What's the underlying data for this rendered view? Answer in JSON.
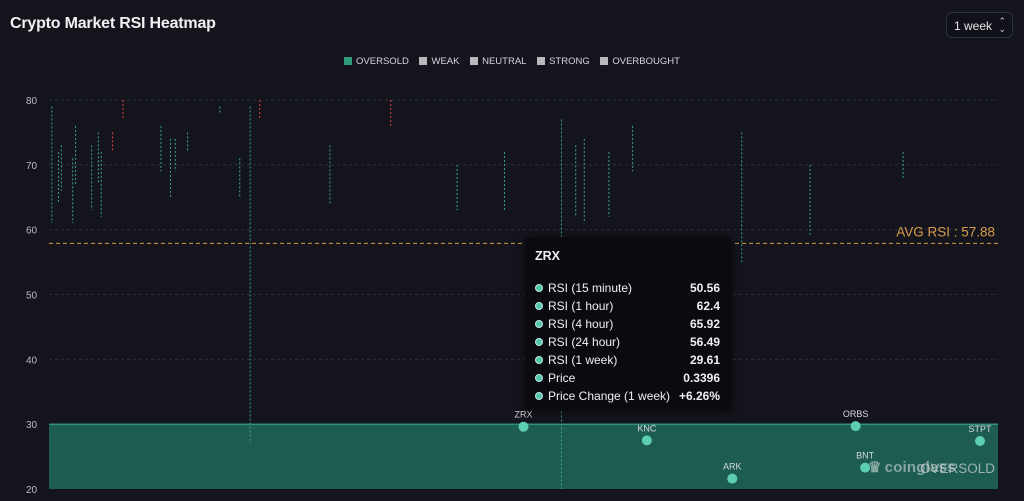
{
  "header": {
    "title": "Crypto Market RSI Heatmap"
  },
  "period_select": {
    "value": "1 week",
    "icon": "chevron-up-down-icon"
  },
  "legend": [
    {
      "label": "OVERSOLD",
      "color": "#2f9a7c"
    },
    {
      "label": "WEAK",
      "color": "#b8b8bd"
    },
    {
      "label": "NEUTRAL",
      "color": "#b8b8bd"
    },
    {
      "label": "STRONG",
      "color": "#b8b8bd"
    },
    {
      "label": "OVERBOUGHT",
      "color": "#b8b8bd"
    }
  ],
  "tooltip": {
    "title": "ZRX",
    "rows": [
      {
        "label": "RSI (15 minute)",
        "value": "50.56"
      },
      {
        "label": "RSI (1 hour)",
        "value": "62.4"
      },
      {
        "label": "RSI (4 hour)",
        "value": "65.92"
      },
      {
        "label": "RSI (24 hour)",
        "value": "56.49"
      },
      {
        "label": "RSI (1 week)",
        "value": "29.61"
      },
      {
        "label": "Price",
        "value": "0.3396"
      },
      {
        "label": "Price Change (1 week)",
        "value": "+6.26%"
      }
    ]
  },
  "watermark": {
    "text": "coinglass",
    "icon": "coinglass-logo-icon"
  },
  "chart_data": {
    "type": "scatter",
    "ylim": [
      20,
      80
    ],
    "yticks": [
      20,
      30,
      40,
      50,
      60,
      70,
      80
    ],
    "avg_rsi": {
      "value": 57.88,
      "label": "AVG RSI : 57.88",
      "color": "#d99a4a"
    },
    "zone": {
      "label": "OVERSOLD",
      "from": 20,
      "to": 30,
      "color": "#1f6a58"
    },
    "points": [
      {
        "label": "ZRX",
        "x": 0.5,
        "rsi": 29.61
      },
      {
        "label": "KNC",
        "x": 0.63,
        "rsi": 27.5
      },
      {
        "label": "ARK",
        "x": 0.72,
        "rsi": 21.6
      },
      {
        "label": "ORBS",
        "x": 0.85,
        "rsi": 29.7
      },
      {
        "label": "BNT",
        "x": 0.86,
        "rsi": 23.3
      },
      {
        "label": "STPT",
        "x": 1.0,
        "rsi": 27.4
      }
    ],
    "rsi_ranges": [
      {
        "x": 0.003,
        "low": 61,
        "high": 79,
        "color": "#3aa58a"
      },
      {
        "x": 0.01,
        "low": 64,
        "high": 72,
        "color": "#3aa58a"
      },
      {
        "x": 0.013,
        "low": 66,
        "high": 73,
        "color": "#3aa58a"
      },
      {
        "x": 0.025,
        "low": 61,
        "high": 71,
        "color": "#3aa58a"
      },
      {
        "x": 0.028,
        "low": 67,
        "high": 76,
        "color": "#3aa58a"
      },
      {
        "x": 0.045,
        "low": 63,
        "high": 73,
        "color": "#3aa58a"
      },
      {
        "x": 0.052,
        "low": 67,
        "high": 75,
        "color": "#3aa58a"
      },
      {
        "x": 0.055,
        "low": 62,
        "high": 72,
        "color": "#3aa58a"
      },
      {
        "x": 0.067,
        "low": 72,
        "high": 75,
        "color": "#d94545"
      },
      {
        "x": 0.078,
        "low": 77,
        "high": 80,
        "color": "#d94545"
      },
      {
        "x": 0.118,
        "low": 69,
        "high": 76,
        "color": "#3aa58a"
      },
      {
        "x": 0.128,
        "low": 65,
        "high": 74,
        "color": "#3aa58a"
      },
      {
        "x": 0.133,
        "low": 69,
        "high": 74,
        "color": "#3aa58a"
      },
      {
        "x": 0.146,
        "low": 72,
        "high": 75,
        "color": "#3aa58a"
      },
      {
        "x": 0.18,
        "low": 78,
        "high": 79,
        "color": "#3aa58a"
      },
      {
        "x": 0.201,
        "low": 65,
        "high": 71,
        "color": "#3aa58a"
      },
      {
        "x": 0.212,
        "low": 27,
        "high": 79,
        "color": "#3aa58a"
      },
      {
        "x": 0.222,
        "low": 77,
        "high": 80,
        "color": "#d94545"
      },
      {
        "x": 0.296,
        "low": 64,
        "high": 73,
        "color": "#3aa58a"
      },
      {
        "x": 0.36,
        "low": 76,
        "high": 80,
        "color": "#d94545"
      },
      {
        "x": 0.43,
        "low": 63,
        "high": 70,
        "color": "#3aa58a"
      },
      {
        "x": 0.48,
        "low": 63,
        "high": 72,
        "color": "#3aa58a"
      },
      {
        "x": 0.54,
        "low": 20,
        "high": 77,
        "color": "#3aa58a"
      },
      {
        "x": 0.555,
        "low": 62,
        "high": 73,
        "color": "#3aa58a"
      },
      {
        "x": 0.564,
        "low": 61,
        "high": 74,
        "color": "#3aa58a"
      },
      {
        "x": 0.59,
        "low": 62,
        "high": 72,
        "color": "#3aa58a"
      },
      {
        "x": 0.615,
        "low": 69,
        "high": 76,
        "color": "#3aa58a"
      },
      {
        "x": 0.73,
        "low": 55,
        "high": 75,
        "color": "#3aa58a"
      },
      {
        "x": 0.802,
        "low": 59,
        "high": 70,
        "color": "#3aa58a"
      },
      {
        "x": 0.9,
        "low": 68,
        "high": 72,
        "color": "#3aa58a"
      }
    ]
  }
}
